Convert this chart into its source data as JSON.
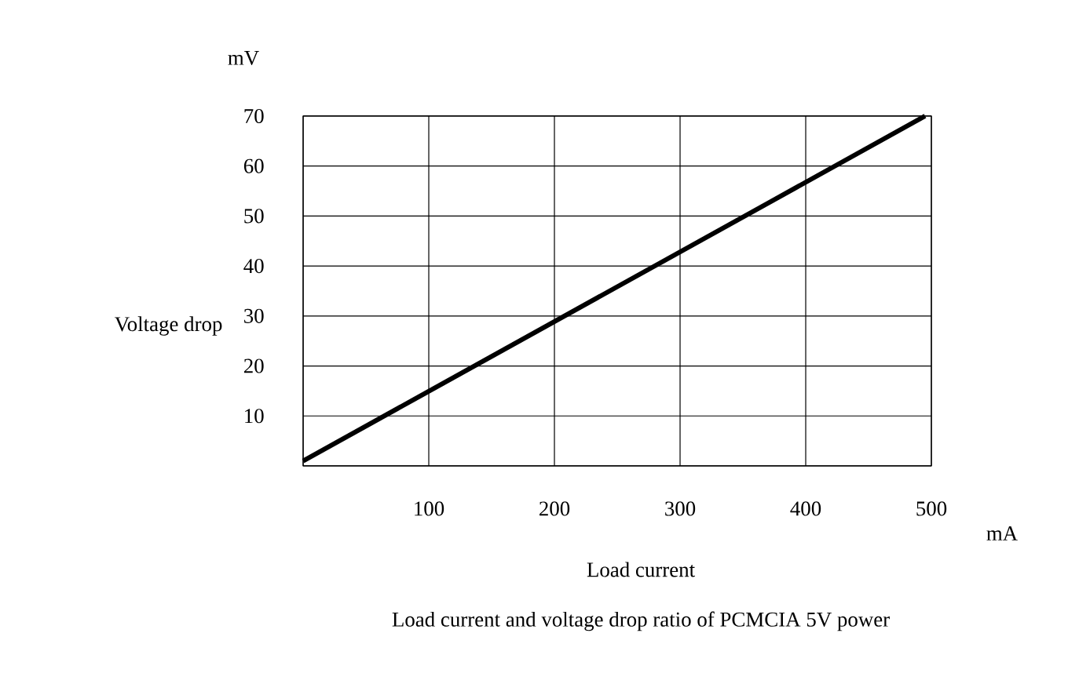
{
  "chart_data": {
    "type": "line",
    "title": "Load current and voltage drop ratio of PCMCIA 5V power",
    "xlabel": "Load current",
    "ylabel": "Voltage drop",
    "annotations": [
      "mV",
      "mA"
    ],
    "x": [
      0,
      495
    ],
    "series": [
      {
        "color": "#000000",
        "values": [
          1,
          70
        ]
      }
    ],
    "xlim": [
      0,
      500
    ],
    "ylim": [
      0,
      70
    ],
    "xticks": [
      {
        "value": 0,
        "label": null
      },
      100,
      200,
      300,
      400,
      500
    ],
    "yticks": [
      {
        "value": 0,
        "label": null
      },
      10,
      20,
      30,
      40,
      50,
      60,
      70
    ],
    "grid": true,
    "marker": "none",
    "line_style": "solid"
  }
}
